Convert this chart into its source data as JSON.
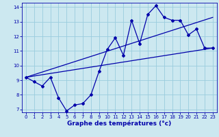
{
  "title": "",
  "xlabel": "Graphe des températures (°c)",
  "ylabel": "",
  "background_color": "#cce8f0",
  "line_color": "#0000aa",
  "grid_color": "#99ccdd",
  "xlim": [
    -0.5,
    23.5
  ],
  "ylim": [
    6.8,
    14.3
  ],
  "xticks": [
    0,
    1,
    2,
    3,
    4,
    5,
    6,
    7,
    8,
    9,
    10,
    11,
    12,
    13,
    14,
    15,
    16,
    17,
    18,
    19,
    20,
    21,
    22,
    23
  ],
  "yticks": [
    7,
    8,
    9,
    10,
    11,
    12,
    13,
    14
  ],
  "line1_x": [
    0,
    1,
    2,
    3,
    4,
    5,
    6,
    7,
    8,
    9,
    10,
    11,
    12,
    13,
    14,
    15,
    16,
    17,
    18,
    19,
    20,
    21,
    22,
    23
  ],
  "line1_y": [
    9.2,
    8.9,
    8.6,
    9.2,
    7.8,
    6.9,
    7.3,
    7.4,
    8.0,
    9.6,
    11.1,
    11.9,
    10.7,
    13.1,
    11.5,
    13.5,
    14.1,
    13.3,
    13.1,
    13.1,
    12.1,
    12.5,
    11.2,
    11.2
  ],
  "line2_x": [
    0,
    23
  ],
  "line2_y": [
    9.2,
    11.2
  ],
  "line3_x": [
    0,
    23
  ],
  "line3_y": [
    9.2,
    13.3
  ]
}
